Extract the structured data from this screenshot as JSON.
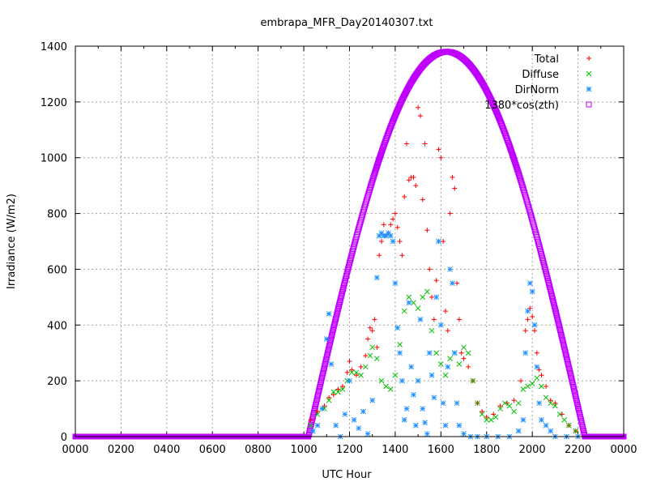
{
  "chart_data": {
    "type": "scatter",
    "title": "embrapa_MFR_Day20140307.txt",
    "xlabel": "UTC Hour",
    "ylabel": "Irradiance (W/m2)",
    "xlim": [
      0,
      24
    ],
    "ylim": [
      0,
      1400
    ],
    "x_ticks": [
      "0000",
      "0200",
      "0400",
      "0600",
      "0800",
      "1000",
      "1200",
      "1400",
      "1600",
      "1800",
      "2000",
      "2200",
      "0000"
    ],
    "y_ticks": [
      "0",
      "200",
      "400",
      "600",
      "800",
      "1000",
      "1200",
      "1400"
    ],
    "grid": true,
    "legend_position": "top-right",
    "series": [
      {
        "name": "Total",
        "color": "#ff0000",
        "marker": "plus",
        "points": [
          [
            10.3,
            60
          ],
          [
            10.6,
            90
          ],
          [
            10.9,
            110
          ],
          [
            11.1,
            140
          ],
          [
            11.3,
            150
          ],
          [
            11.5,
            170
          ],
          [
            11.7,
            180
          ],
          [
            11.9,
            230
          ],
          [
            12.0,
            270
          ],
          [
            12.1,
            240
          ],
          [
            12.3,
            220
          ],
          [
            12.5,
            250
          ],
          [
            12.7,
            290
          ],
          [
            12.8,
            350
          ],
          [
            12.9,
            390
          ],
          [
            13.0,
            380
          ],
          [
            13.1,
            420
          ],
          [
            13.2,
            320
          ],
          [
            13.3,
            650
          ],
          [
            13.4,
            700
          ],
          [
            13.5,
            760
          ],
          [
            13.6,
            720
          ],
          [
            13.7,
            730
          ],
          [
            13.8,
            760
          ],
          [
            13.9,
            780
          ],
          [
            14.0,
            800
          ],
          [
            14.1,
            750
          ],
          [
            14.2,
            700
          ],
          [
            14.3,
            650
          ],
          [
            14.4,
            860
          ],
          [
            14.5,
            1050
          ],
          [
            14.6,
            920
          ],
          [
            14.7,
            930
          ],
          [
            14.8,
            930
          ],
          [
            14.9,
            900
          ],
          [
            15.0,
            1180
          ],
          [
            15.1,
            1150
          ],
          [
            15.2,
            850
          ],
          [
            15.3,
            1050
          ],
          [
            15.4,
            740
          ],
          [
            15.5,
            600
          ],
          [
            15.6,
            500
          ],
          [
            15.7,
            420
          ],
          [
            15.8,
            560
          ],
          [
            15.9,
            1030
          ],
          [
            16.0,
            1000
          ],
          [
            16.1,
            700
          ],
          [
            16.2,
            450
          ],
          [
            16.3,
            380
          ],
          [
            16.4,
            800
          ],
          [
            16.5,
            930
          ],
          [
            16.6,
            890
          ],
          [
            16.7,
            550
          ],
          [
            16.8,
            420
          ],
          [
            16.9,
            300
          ],
          [
            17.0,
            280
          ],
          [
            17.2,
            250
          ],
          [
            17.4,
            200
          ],
          [
            17.6,
            120
          ],
          [
            17.8,
            90
          ],
          [
            18.0,
            70
          ],
          [
            18.3,
            80
          ],
          [
            18.6,
            110
          ],
          [
            18.9,
            120
          ],
          [
            19.2,
            130
          ],
          [
            19.5,
            200
          ],
          [
            19.7,
            380
          ],
          [
            19.8,
            420
          ],
          [
            19.9,
            460
          ],
          [
            20.0,
            430
          ],
          [
            20.1,
            380
          ],
          [
            20.2,
            300
          ],
          [
            20.3,
            240
          ],
          [
            20.4,
            220
          ],
          [
            20.6,
            180
          ],
          [
            20.8,
            130
          ],
          [
            21.0,
            120
          ],
          [
            21.3,
            80
          ],
          [
            21.6,
            40
          ],
          [
            21.9,
            20
          ]
        ]
      },
      {
        "name": "Diffuse",
        "color": "#00c000",
        "marker": "cross",
        "points": [
          [
            10.3,
            40
          ],
          [
            10.6,
            80
          ],
          [
            10.9,
            100
          ],
          [
            11.1,
            130
          ],
          [
            11.3,
            160
          ],
          [
            11.5,
            160
          ],
          [
            11.7,
            170
          ],
          [
            11.9,
            200
          ],
          [
            12.1,
            230
          ],
          [
            12.3,
            230
          ],
          [
            12.5,
            220
          ],
          [
            12.7,
            250
          ],
          [
            12.9,
            290
          ],
          [
            13.0,
            320
          ],
          [
            13.2,
            280
          ],
          [
            13.4,
            200
          ],
          [
            13.6,
            180
          ],
          [
            13.8,
            170
          ],
          [
            14.0,
            220
          ],
          [
            14.2,
            330
          ],
          [
            14.4,
            450
          ],
          [
            14.6,
            500
          ],
          [
            14.8,
            480
          ],
          [
            15.0,
            460
          ],
          [
            15.2,
            500
          ],
          [
            15.4,
            520
          ],
          [
            15.6,
            380
          ],
          [
            15.8,
            300
          ],
          [
            16.0,
            260
          ],
          [
            16.2,
            220
          ],
          [
            16.4,
            280
          ],
          [
            16.6,
            300
          ],
          [
            16.8,
            260
          ],
          [
            17.0,
            320
          ],
          [
            17.2,
            300
          ],
          [
            17.4,
            200
          ],
          [
            17.6,
            120
          ],
          [
            17.8,
            80
          ],
          [
            18.0,
            60
          ],
          [
            18.2,
            60
          ],
          [
            18.4,
            70
          ],
          [
            18.6,
            100
          ],
          [
            18.8,
            120
          ],
          [
            19.0,
            110
          ],
          [
            19.2,
            90
          ],
          [
            19.4,
            120
          ],
          [
            19.6,
            170
          ],
          [
            19.8,
            180
          ],
          [
            20.0,
            190
          ],
          [
            20.2,
            210
          ],
          [
            20.4,
            180
          ],
          [
            20.6,
            140
          ],
          [
            20.8,
            120
          ],
          [
            21.0,
            110
          ],
          [
            21.2,
            80
          ],
          [
            21.4,
            60
          ],
          [
            21.6,
            40
          ],
          [
            21.9,
            20
          ]
        ]
      },
      {
        "name": "DirNorm",
        "color": "#1e90ff",
        "marker": "star",
        "points": [
          [
            10.4,
            20
          ],
          [
            10.6,
            40
          ],
          [
            10.8,
            100
          ],
          [
            11.0,
            350
          ],
          [
            11.1,
            440
          ],
          [
            11.2,
            260
          ],
          [
            11.4,
            40
          ],
          [
            11.6,
            0
          ],
          [
            11.8,
            80
          ],
          [
            12.0,
            200
          ],
          [
            12.2,
            60
          ],
          [
            12.4,
            30
          ],
          [
            12.6,
            90
          ],
          [
            12.8,
            10
          ],
          [
            13.0,
            130
          ],
          [
            13.2,
            570
          ],
          [
            13.3,
            720
          ],
          [
            13.4,
            730
          ],
          [
            13.5,
            720
          ],
          [
            13.6,
            720
          ],
          [
            13.7,
            730
          ],
          [
            13.8,
            720
          ],
          [
            13.9,
            700
          ],
          [
            14.0,
            550
          ],
          [
            14.1,
            390
          ],
          [
            14.2,
            300
          ],
          [
            14.3,
            200
          ],
          [
            14.4,
            60
          ],
          [
            14.5,
            100
          ],
          [
            14.6,
            480
          ],
          [
            14.7,
            250
          ],
          [
            14.8,
            150
          ],
          [
            14.9,
            40
          ],
          [
            15.0,
            200
          ],
          [
            15.1,
            420
          ],
          [
            15.2,
            100
          ],
          [
            15.3,
            50
          ],
          [
            15.4,
            10
          ],
          [
            15.5,
            300
          ],
          [
            15.6,
            220
          ],
          [
            15.7,
            140
          ],
          [
            15.8,
            500
          ],
          [
            15.9,
            700
          ],
          [
            16.0,
            400
          ],
          [
            16.1,
            120
          ],
          [
            16.2,
            40
          ],
          [
            16.3,
            250
          ],
          [
            16.4,
            600
          ],
          [
            16.5,
            550
          ],
          [
            16.6,
            300
          ],
          [
            16.7,
            120
          ],
          [
            16.8,
            40
          ],
          [
            17.0,
            10
          ],
          [
            17.3,
            0
          ],
          [
            17.6,
            0
          ],
          [
            18.0,
            0
          ],
          [
            18.5,
            0
          ],
          [
            19.0,
            0
          ],
          [
            19.4,
            20
          ],
          [
            19.6,
            60
          ],
          [
            19.7,
            300
          ],
          [
            19.8,
            450
          ],
          [
            19.9,
            550
          ],
          [
            20.0,
            520
          ],
          [
            20.1,
            400
          ],
          [
            20.2,
            250
          ],
          [
            20.3,
            120
          ],
          [
            20.4,
            60
          ],
          [
            20.6,
            40
          ],
          [
            20.8,
            20
          ],
          [
            21.0,
            0
          ],
          [
            21.5,
            0
          ],
          [
            22.0,
            0
          ]
        ]
      },
      {
        "name": "1380*cos(zth)",
        "color": "#c000ff",
        "marker": "square",
        "sun_curve": {
          "noon_hour": 16.25,
          "peak": 1380,
          "sunrise_hour": 10.2,
          "sunset_hour": 22.3
        }
      }
    ]
  }
}
